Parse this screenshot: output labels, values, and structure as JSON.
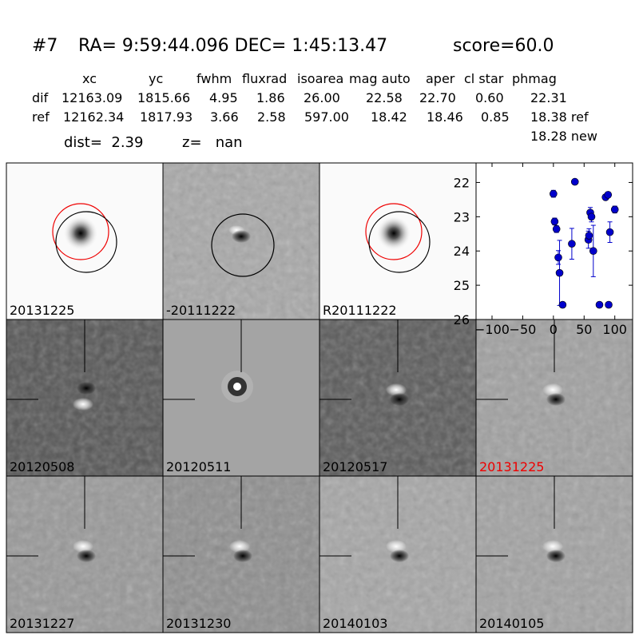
{
  "header": {
    "id": "#7",
    "coords": "RA= 9:59:44.096 DEC= 1:45:13.47",
    "score": "score=60.0"
  },
  "table": {
    "columns": [
      "xc",
      "yc",
      "fwhm",
      "fluxrad",
      "isoarea",
      "mag auto",
      "aper",
      "cl star",
      "phmag"
    ],
    "rows": [
      [
        "dif",
        "12163.09",
        "1815.66",
        "4.95",
        "1.86",
        "26.00",
        "22.58",
        "22.70",
        "0.60",
        "22.31"
      ],
      [
        "ref",
        "12162.34",
        "1817.93",
        "3.66",
        "2.58",
        "597.00",
        "18.42",
        "18.46",
        "0.85",
        "18.38 ref"
      ]
    ],
    "extra": "18.28 new"
  },
  "info": {
    "dist": "dist=  2.39",
    "z": "z=   nan"
  },
  "panels": [
    "20131225",
    "-20111222",
    "R20111222",
    "20120508",
    "20120511",
    "20120517",
    "20131225",
    "20131227",
    "20131230",
    "20140103",
    "20140105"
  ],
  "chart_data": {
    "type": "scatter",
    "x": [
      0,
      2,
      5,
      8,
      10,
      15,
      30,
      35,
      57,
      58,
      60,
      62,
      65,
      75,
      85,
      89,
      90,
      92,
      100
    ],
    "values": [
      22.33,
      23.14,
      23.36,
      24.19,
      24.64,
      25.57,
      23.79,
      21.98,
      23.67,
      23.55,
      22.88,
      23.0,
      24.0,
      25.57,
      22.43,
      22.36,
      25.57,
      23.45,
      22.79
    ],
    "errors": [
      0.1,
      0.1,
      0.1,
      0.2,
      0.95,
      0.05,
      0.45,
      0.05,
      0.25,
      0.2,
      0.15,
      0.15,
      0.75,
      0.05,
      0.08,
      0.08,
      0.05,
      0.3,
      0.1
    ],
    "color": "#0000cc",
    "xlim": [
      -126,
      129
    ],
    "ylim": [
      26,
      21.43
    ],
    "xticks": [
      {
        "value": -100,
        "label": "−100"
      },
      {
        "value": -50,
        "label": "−50"
      },
      0,
      50,
      100
    ],
    "yticks": [
      22,
      23,
      24,
      25,
      26
    ]
  }
}
